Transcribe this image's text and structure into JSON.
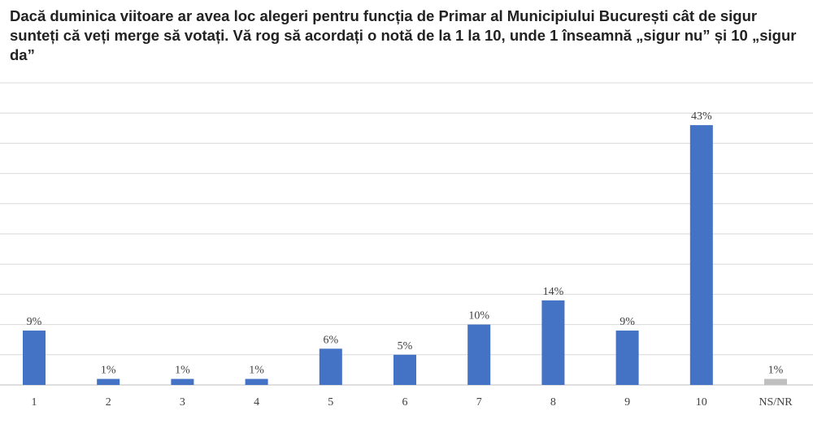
{
  "title": "Dacă duminica viitoare ar avea loc alegeri pentru funcția de Primar al Municipiului București cât de sigur sunteți că veți merge să votați. Vă rog să acordați o notă de la 1 la 10, unde 1 înseamnă „sigur nu” și 10 „sigur da”",
  "chart_data": {
    "type": "bar",
    "title": "Dacă duminica viitoare ar avea loc alegeri pentru funcția de Primar al Municipiului București cât de sigur sunteți că veți merge să votați. Vă rog să acordați o notă de la 1 la 10, unde 1 înseamnă „sigur nu” și 10 „sigur da”",
    "categories": [
      "1",
      "2",
      "3",
      "4",
      "5",
      "6",
      "7",
      "8",
      "9",
      "10",
      "NS/NR"
    ],
    "values": [
      9,
      1,
      1,
      1,
      6,
      5,
      10,
      14,
      9,
      43,
      1
    ],
    "labels": [
      "9%",
      "1%",
      "1%",
      "1%",
      "6%",
      "5%",
      "10%",
      "14%",
      "9%",
      "43%",
      "1%"
    ],
    "colors": [
      "#4472c4",
      "#4472c4",
      "#4472c4",
      "#4472c4",
      "#4472c4",
      "#4472c4",
      "#4472c4",
      "#4472c4",
      "#4472c4",
      "#4472c4",
      "#bfbfbf"
    ],
    "ylim": [
      0,
      50
    ],
    "grid": true,
    "legend": "none"
  }
}
